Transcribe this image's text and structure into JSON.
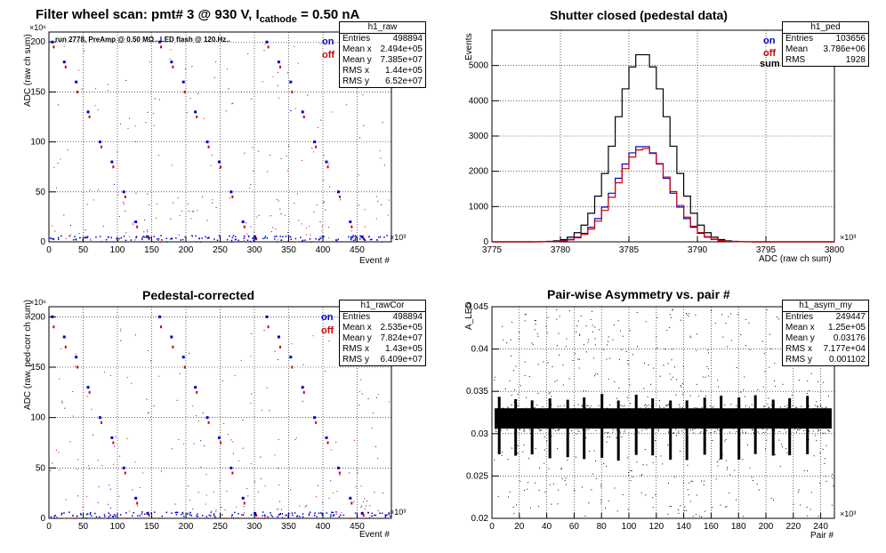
{
  "page_title": {
    "main": "Filter wheel scan: pmt#   3 @   930 V, I",
    "sub": "cathode",
    "tail": " = 0.50 nA"
  },
  "chart_data": [
    {
      "id": "raw",
      "type": "scatter",
      "title": "",
      "run_note": "run 2778, PreAmp @ 0.50 MΩ...LED flash @  120.Hz..",
      "ylabel": "ADC (raw ch sum)",
      "xlabel": "Event #",
      "x_multiplier": "×10³",
      "y_multiplier": "×10⁶",
      "xlim": [
        0,
        500
      ],
      "ylim": [
        0,
        210
      ],
      "xticks": [
        0,
        50,
        100,
        150,
        200,
        250,
        300,
        350,
        400,
        450
      ],
      "yticks": [
        0,
        50,
        100,
        150,
        200
      ],
      "legend": {
        "on": "on",
        "off": "off"
      },
      "levels_on": [
        200,
        180,
        160,
        130,
        100,
        80,
        50,
        20,
        5
      ],
      "levels_off": [
        195,
        175,
        150,
        125,
        95,
        75,
        45,
        15,
        3
      ],
      "stats": {
        "name": "h1_raw",
        "rows": [
          [
            "Entries",
            "498894"
          ],
          [
            "Mean x",
            "2.494e+05"
          ],
          [
            "Mean y",
            "7.385e+07"
          ],
          [
            "RMS x",
            "1.44e+05"
          ],
          [
            "RMS y",
            "6.52e+07"
          ]
        ]
      }
    },
    {
      "id": "ped",
      "type": "line",
      "title": "Shutter closed (pedestal data)",
      "ylabel": "Events",
      "xlabel": "ADC (raw ch sum)",
      "x_multiplier": "×10³",
      "xlim": [
        3775,
        3800
      ],
      "ylim": [
        0,
        6000
      ],
      "xticks": [
        3775,
        3780,
        3785,
        3790,
        3795,
        3800
      ],
      "yticks": [
        0,
        1000,
        2000,
        3000,
        4000,
        5000
      ],
      "legend": {
        "on": "on",
        "off": "off",
        "sum": "sum"
      },
      "series": [
        {
          "name": "sum",
          "color": "#000000",
          "mean": 3786.0,
          "sigma": 1.93,
          "peak": 5350
        },
        {
          "name": "on",
          "color": "#0000c8",
          "mean": 3786.0,
          "sigma": 1.93,
          "peak": 2720
        },
        {
          "name": "off",
          "color": "#d00000",
          "mean": 3786.1,
          "sigma": 1.93,
          "peak": 2650
        }
      ],
      "stats": {
        "name": "h1_ped",
        "rows": [
          [
            "Entries",
            "103656"
          ],
          [
            "Mean",
            "3.786e+06"
          ],
          [
            "RMS",
            "1928"
          ]
        ]
      }
    },
    {
      "id": "rawcor",
      "type": "scatter",
      "title": "Pedestal-corrected",
      "ylabel": "ADC (raw, ped-corr ch sum)",
      "xlabel": "Event #",
      "x_multiplier": "×10³",
      "y_multiplier": "×10⁶",
      "xlim": [
        0,
        500
      ],
      "ylim": [
        0,
        210
      ],
      "xticks": [
        0,
        50,
        100,
        150,
        200,
        250,
        300,
        350,
        400,
        450
      ],
      "yticks": [
        0,
        50,
        100,
        150,
        200
      ],
      "legend": {
        "on": "on",
        "off": "off"
      },
      "levels_on": [
        200,
        180,
        160,
        130,
        100,
        80,
        50,
        20,
        5
      ],
      "levels_off": [
        190,
        170,
        150,
        125,
        95,
        75,
        45,
        15,
        3
      ],
      "stats": {
        "name": "h1_rawCor",
        "rows": [
          [
            "Entries",
            "498894"
          ],
          [
            "Mean x",
            "2.535e+05"
          ],
          [
            "Mean y",
            "7.824e+07"
          ],
          [
            "RMS x",
            "1.43e+05"
          ],
          [
            "RMS y",
            "6.409e+07"
          ]
        ]
      }
    },
    {
      "id": "asym",
      "type": "scatter",
      "title": "Pair-wise Asymmetry vs. pair #",
      "ylabel": "A_LED",
      "xlabel": "Pair #",
      "x_multiplier": "×10³",
      "xlim": [
        0,
        250
      ],
      "ylim": [
        0.02,
        0.045
      ],
      "xticks": [
        0,
        20,
        40,
        60,
        80,
        100,
        120,
        140,
        160,
        180,
        200,
        220,
        240
      ],
      "yticks": [
        0.02,
        0.025,
        0.03,
        0.035,
        0.04,
        0.045
      ],
      "band": {
        "center": 0.0318,
        "half_width": 0.0012
      },
      "spikes_x": [
        5,
        17,
        29,
        42,
        55,
        67,
        80,
        92,
        105,
        117,
        130,
        142,
        155,
        167,
        180,
        192,
        205,
        217,
        230
      ],
      "stats": {
        "name": "h1_asym_my",
        "rows": [
          [
            "Entries",
            "249447"
          ],
          [
            "Mean x",
            "1.25e+05"
          ],
          [
            "Mean y",
            "0.03176"
          ],
          [
            "RMS x",
            "7.177e+04"
          ],
          [
            "RMS y",
            "0.001102"
          ]
        ]
      }
    }
  ]
}
